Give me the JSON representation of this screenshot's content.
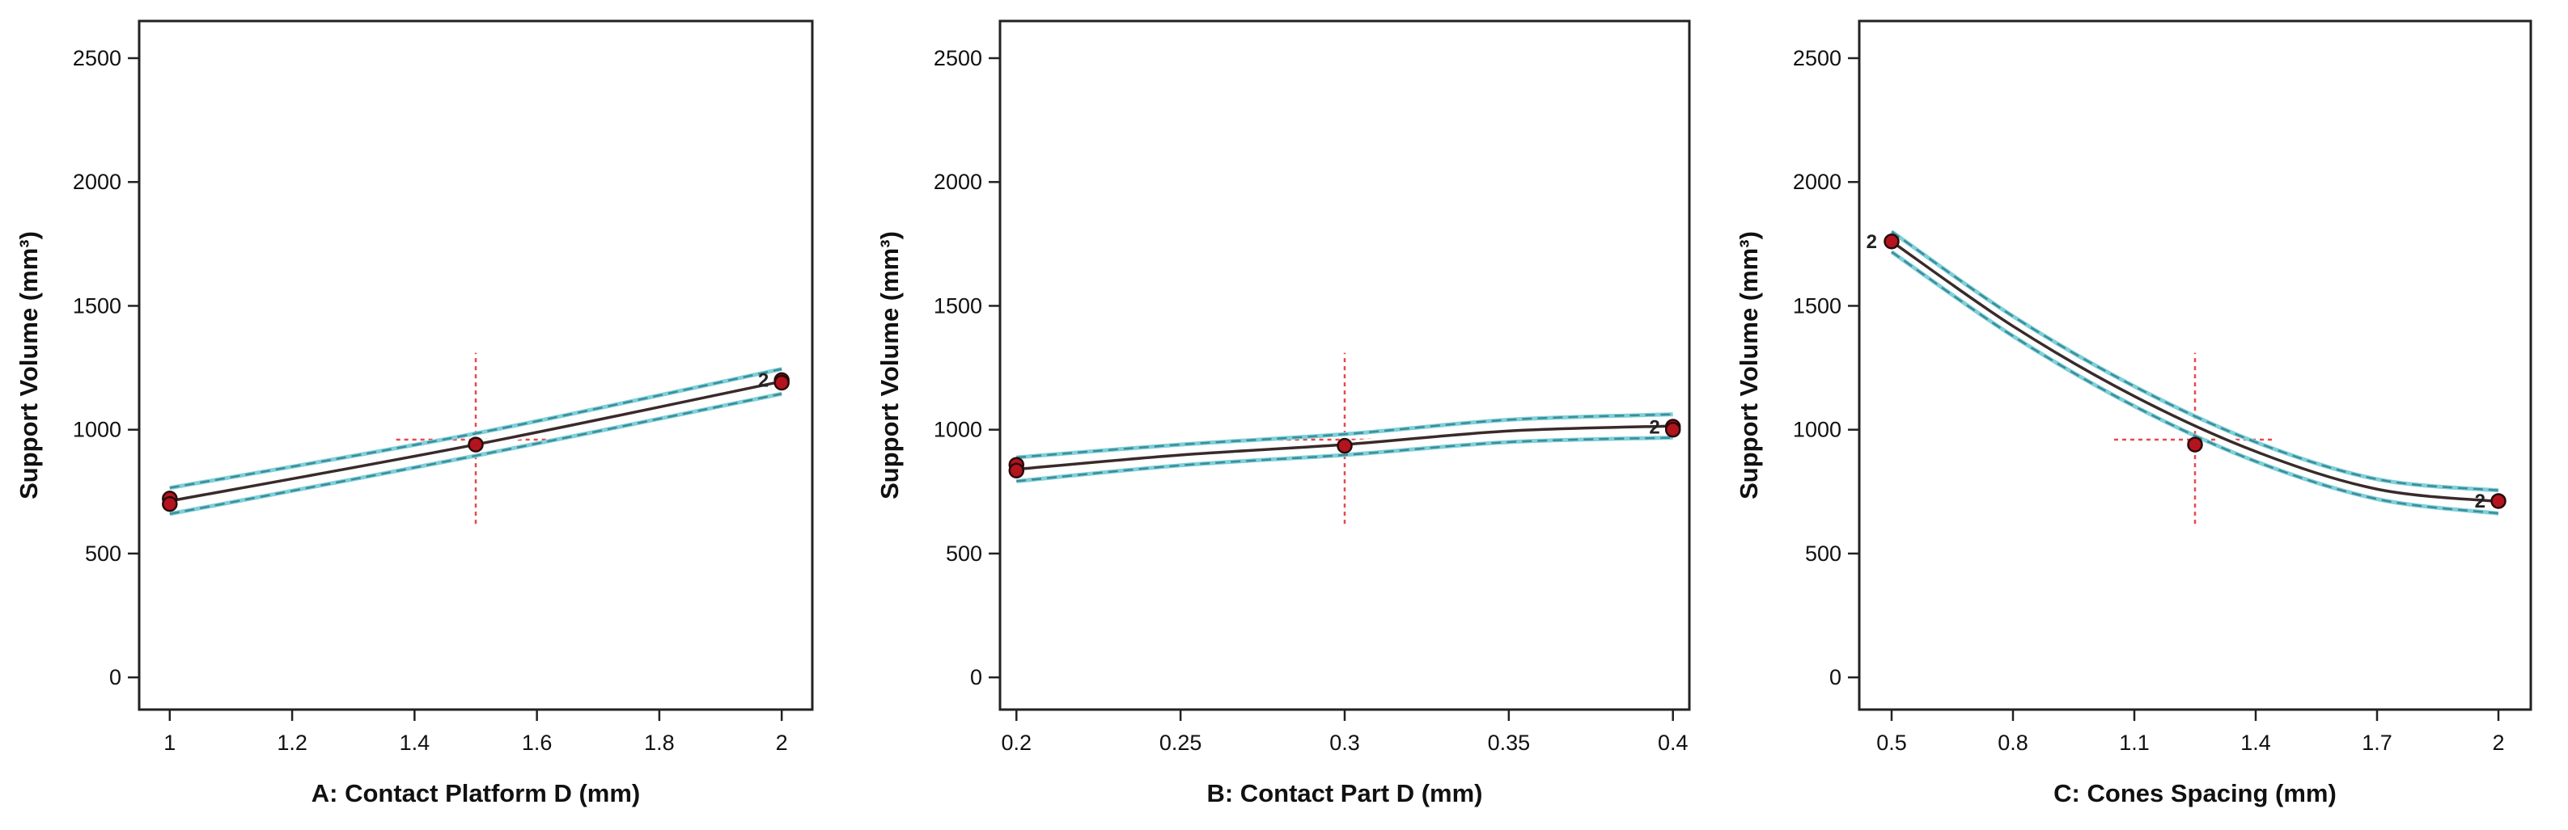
{
  "chart_data": [
    {
      "type": "line",
      "xlabel": "A: Contact Platform D (mm)",
      "ylabel": "Support Volume (mm³)",
      "xlim": [
        0.95,
        2.05
      ],
      "ylim": [
        -130,
        2650
      ],
      "xticks": [
        "1",
        "1.2",
        "1.4",
        "1.6",
        "1.8",
        "2"
      ],
      "yticks": [
        "0",
        "500",
        "1000",
        "1500",
        "2000",
        "2500"
      ],
      "series": [
        {
          "x": [
            1,
            1.5,
            2
          ],
          "y": [
            712,
            940,
            1195
          ]
        },
        {
          "x": [
            1,
            1.5,
            2
          ],
          "y": [
            765,
            985,
            1245
          ]
        },
        {
          "x": [
            1,
            1.5,
            2
          ],
          "y": [
            660,
            895,
            1145
          ]
        }
      ],
      "design_points": [
        {
          "x": 1,
          "y": 722
        },
        {
          "x": 1,
          "y": 700
        },
        {
          "x": 1.5,
          "y": 940
        },
        {
          "x": 2,
          "y": 1200
        },
        {
          "x": 2,
          "y": 1190
        }
      ],
      "point_labels": [
        {
          "x": 2,
          "y": 1200,
          "text": "2"
        }
      ],
      "center_crosshair": {
        "x": 1.5,
        "y": 960,
        "x_half_span": 0.13,
        "y_range": [
          620,
          1310
        ]
      }
    },
    {
      "type": "line",
      "xlabel": "B: Contact Part D (mm)",
      "ylabel": "Support Volume (mm³)",
      "xlim": [
        0.195,
        0.405
      ],
      "ylim": [
        -130,
        2650
      ],
      "xticks": [
        "0.2",
        "0.25",
        "0.3",
        "0.35",
        "0.4"
      ],
      "yticks": [
        "0",
        "500",
        "1000",
        "1500",
        "2000",
        "2500"
      ],
      "series": [
        {
          "x": [
            0.2,
            0.25,
            0.3,
            0.35,
            0.4
          ],
          "y": [
            840,
            898,
            940,
            995,
            1015
          ]
        },
        {
          "x": [
            0.2,
            0.25,
            0.3,
            0.35,
            0.4
          ],
          "y": [
            888,
            940,
            982,
            1040,
            1062
          ]
        },
        {
          "x": [
            0.2,
            0.25,
            0.3,
            0.35,
            0.4
          ],
          "y": [
            792,
            856,
            898,
            950,
            968
          ]
        }
      ],
      "design_points": [
        {
          "x": 0.2,
          "y": 858
        },
        {
          "x": 0.2,
          "y": 835
        },
        {
          "x": 0.3,
          "y": 935
        },
        {
          "x": 0.4,
          "y": 1012
        },
        {
          "x": 0.4,
          "y": 1000
        }
      ],
      "point_labels": [
        {
          "x": 0.4,
          "y": 1010,
          "text": "2"
        }
      ],
      "center_crosshair": {
        "x": 0.3,
        "y": 960,
        "x_half_span": 0.025,
        "y_range": [
          620,
          1310
        ]
      }
    },
    {
      "type": "line",
      "xlabel": "C: Cones Spacing (mm)",
      "ylabel": "Support Volume (mm³)",
      "xlim": [
        0.42,
        2.08
      ],
      "ylim": [
        -130,
        2650
      ],
      "xticks": [
        "0.5",
        "0.8",
        "1.1",
        "1.4",
        "1.7",
        "2"
      ],
      "yticks": [
        "0",
        "500",
        "1000",
        "1500",
        "2000",
        "2500"
      ],
      "series": [
        {
          "x": [
            0.5,
            0.8,
            1.1,
            1.4,
            1.7,
            2
          ],
          "y": [
            1760,
            1418,
            1135,
            912,
            760,
            710
          ]
        },
        {
          "x": [
            0.5,
            0.8,
            1.1,
            1.4,
            1.7,
            2
          ],
          "y": [
            1800,
            1458,
            1175,
            950,
            800,
            755
          ]
        },
        {
          "x": [
            0.5,
            0.8,
            1.1,
            1.4,
            1.7,
            2
          ],
          "y": [
            1718,
            1378,
            1095,
            872,
            720,
            662
          ]
        }
      ],
      "design_points": [
        {
          "x": 0.5,
          "y": 1760
        },
        {
          "x": 1.25,
          "y": 940
        },
        {
          "x": 2,
          "y": 712
        }
      ],
      "point_labels": [
        {
          "x": 0.5,
          "y": 1760,
          "text": "2"
        },
        {
          "x": 2,
          "y": 712,
          "text": "2"
        }
      ],
      "center_crosshair": {
        "x": 1.25,
        "y": 960,
        "x_half_span": 0.2,
        "y_range": [
          620,
          1310
        ]
      }
    }
  ]
}
